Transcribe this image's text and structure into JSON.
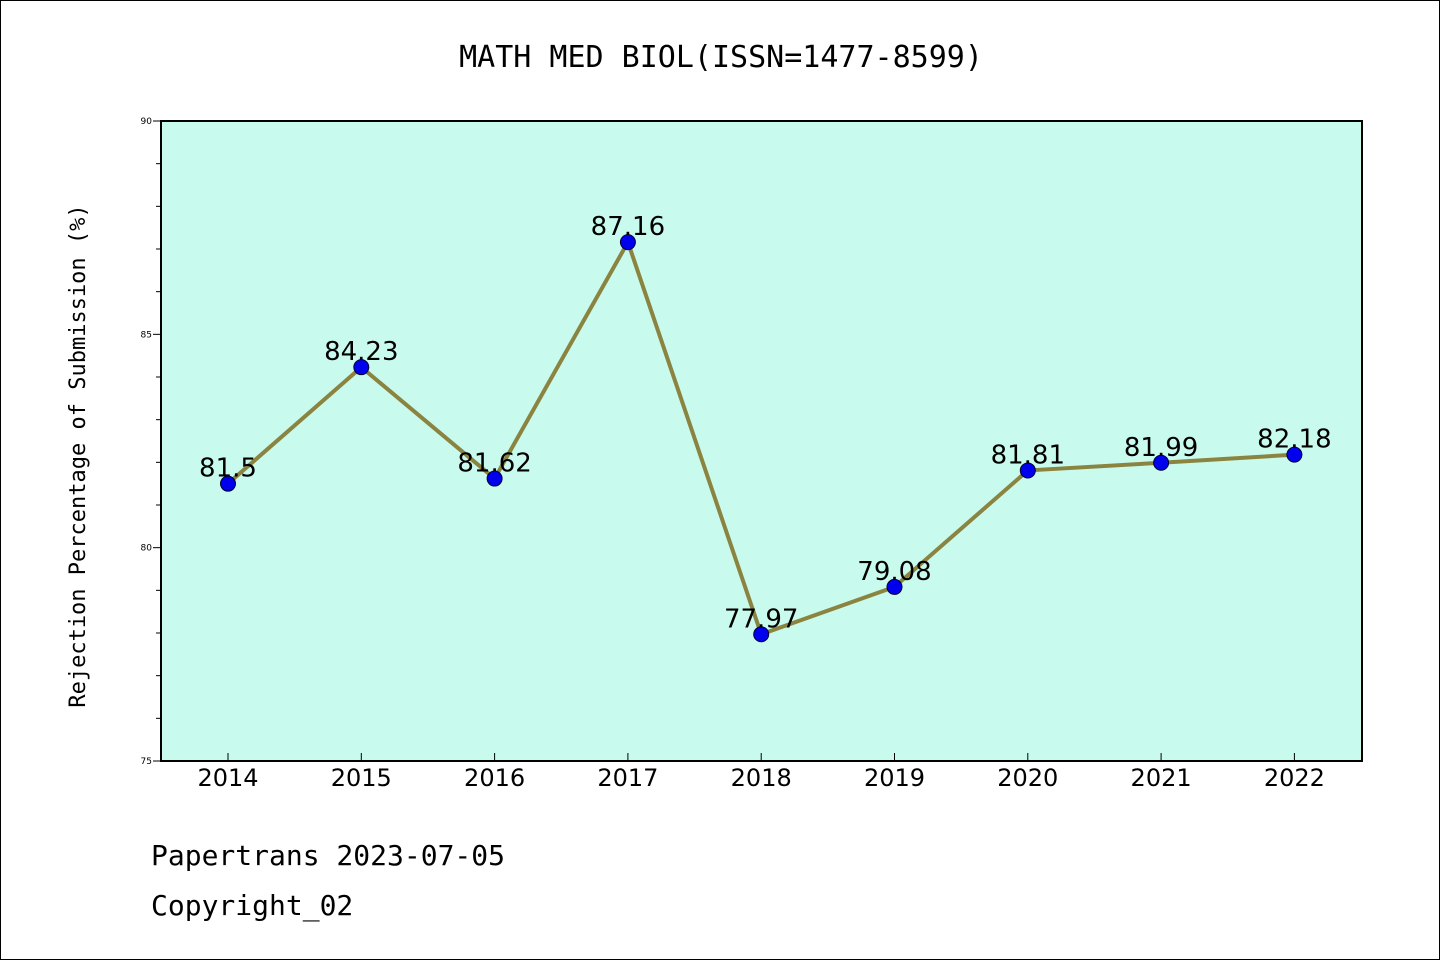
{
  "chart_data": {
    "type": "line",
    "title": "MATH MED BIOL(ISSN=1477-8599)",
    "xlabel": "",
    "ylabel": "Rejection Percentage of Submission (%)",
    "categories": [
      "2014",
      "2015",
      "2016",
      "2017",
      "2018",
      "2019",
      "2020",
      "2021",
      "2022"
    ],
    "series": [
      {
        "values": [
          81.5,
          84.23,
          81.62,
          87.16,
          77.97,
          79.08,
          81.81,
          81.99,
          82.18
        ],
        "labels": [
          "81.5",
          "84.23",
          "81.62",
          "87.16",
          "77.97",
          "79.08",
          "81.81",
          "81.99",
          "82.18"
        ]
      }
    ],
    "ylim": [
      75,
      90
    ],
    "yticks": [
      "75",
      "80",
      "85",
      "90"
    ],
    "grid": false,
    "legend": "none",
    "colors": {
      "plot_background": "#c8fbee",
      "line": "#8b8440",
      "marker": "#0000ee"
    }
  },
  "footer": {
    "line1": "Papertrans 2023-07-05",
    "line2": "Copyright_02"
  }
}
